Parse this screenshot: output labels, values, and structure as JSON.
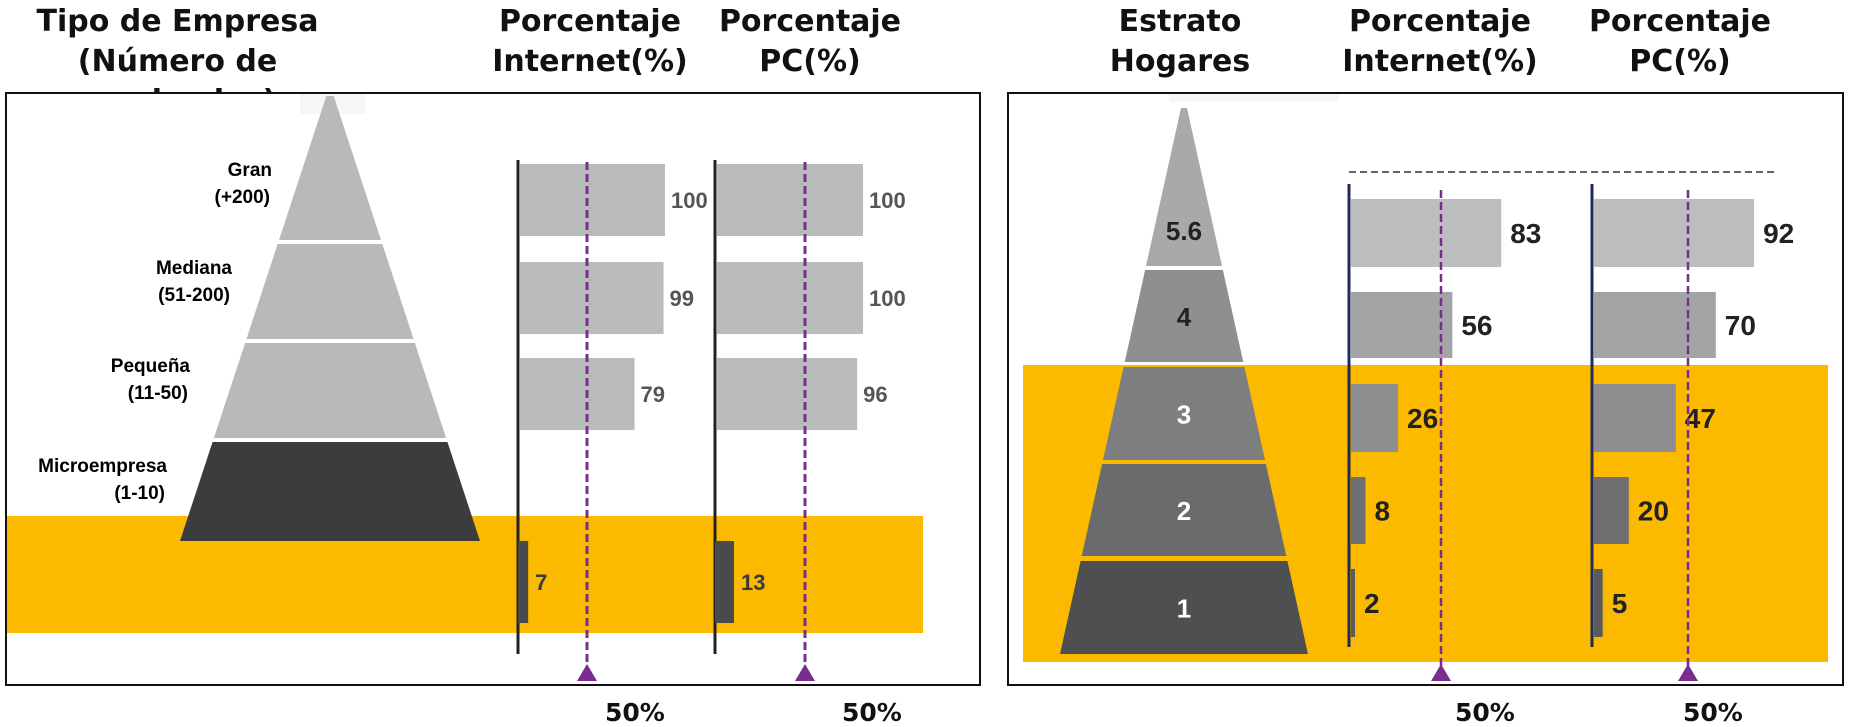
{
  "chart_data": [
    {
      "type": "bar",
      "headers": {
        "category": "Tipo de Empresa\n(Número de empleados)",
        "internet": "Porcentaje\nInternet(%)",
        "pc": "Porcentaje\nPC(%)"
      },
      "categories": [
        {
          "name": "Gran",
          "range": "(+200)"
        },
        {
          "name": "Mediana",
          "range": "(51-200)"
        },
        {
          "name": "Pequeña",
          "range": "(11-50)"
        },
        {
          "name": "Microempresa",
          "range": "(1-10)"
        }
      ],
      "series": [
        {
          "key": "internet",
          "values": [
            100,
            99,
            79,
            7
          ]
        },
        {
          "key": "pc",
          "values": [
            100,
            100,
            96,
            13
          ]
        }
      ],
      "highlighted_categories": [
        "Microempresa"
      ],
      "reference_label": "50%",
      "reference_value": 50,
      "xlim": [
        0,
        100
      ]
    },
    {
      "type": "bar",
      "headers": {
        "category": "Estrato\nHogares",
        "internet": "Porcentaje\nInternet(%)",
        "pc": "Porcentaje\nPC(%)"
      },
      "categories": [
        "5.6",
        "4",
        "3",
        "2",
        "1"
      ],
      "series": [
        {
          "key": "internet",
          "values": [
            83,
            56,
            26,
            8,
            2
          ]
        },
        {
          "key": "pc",
          "values": [
            92,
            70,
            47,
            20,
            5
          ]
        }
      ],
      "highlighted_categories": [
        "3",
        "2",
        "1"
      ],
      "reference_label": "50%",
      "reference_value": 50,
      "xlim": [
        0,
        100
      ]
    }
  ],
  "colors": {
    "highlight": "#FBBA00",
    "reference_line": "#7B2D8E",
    "pyramid_light": "#B8B9BB",
    "pyramid_dark": "#3C3C3E",
    "bar_light": "#BABBBD",
    "bar_dark": "#4A4A4C"
  }
}
